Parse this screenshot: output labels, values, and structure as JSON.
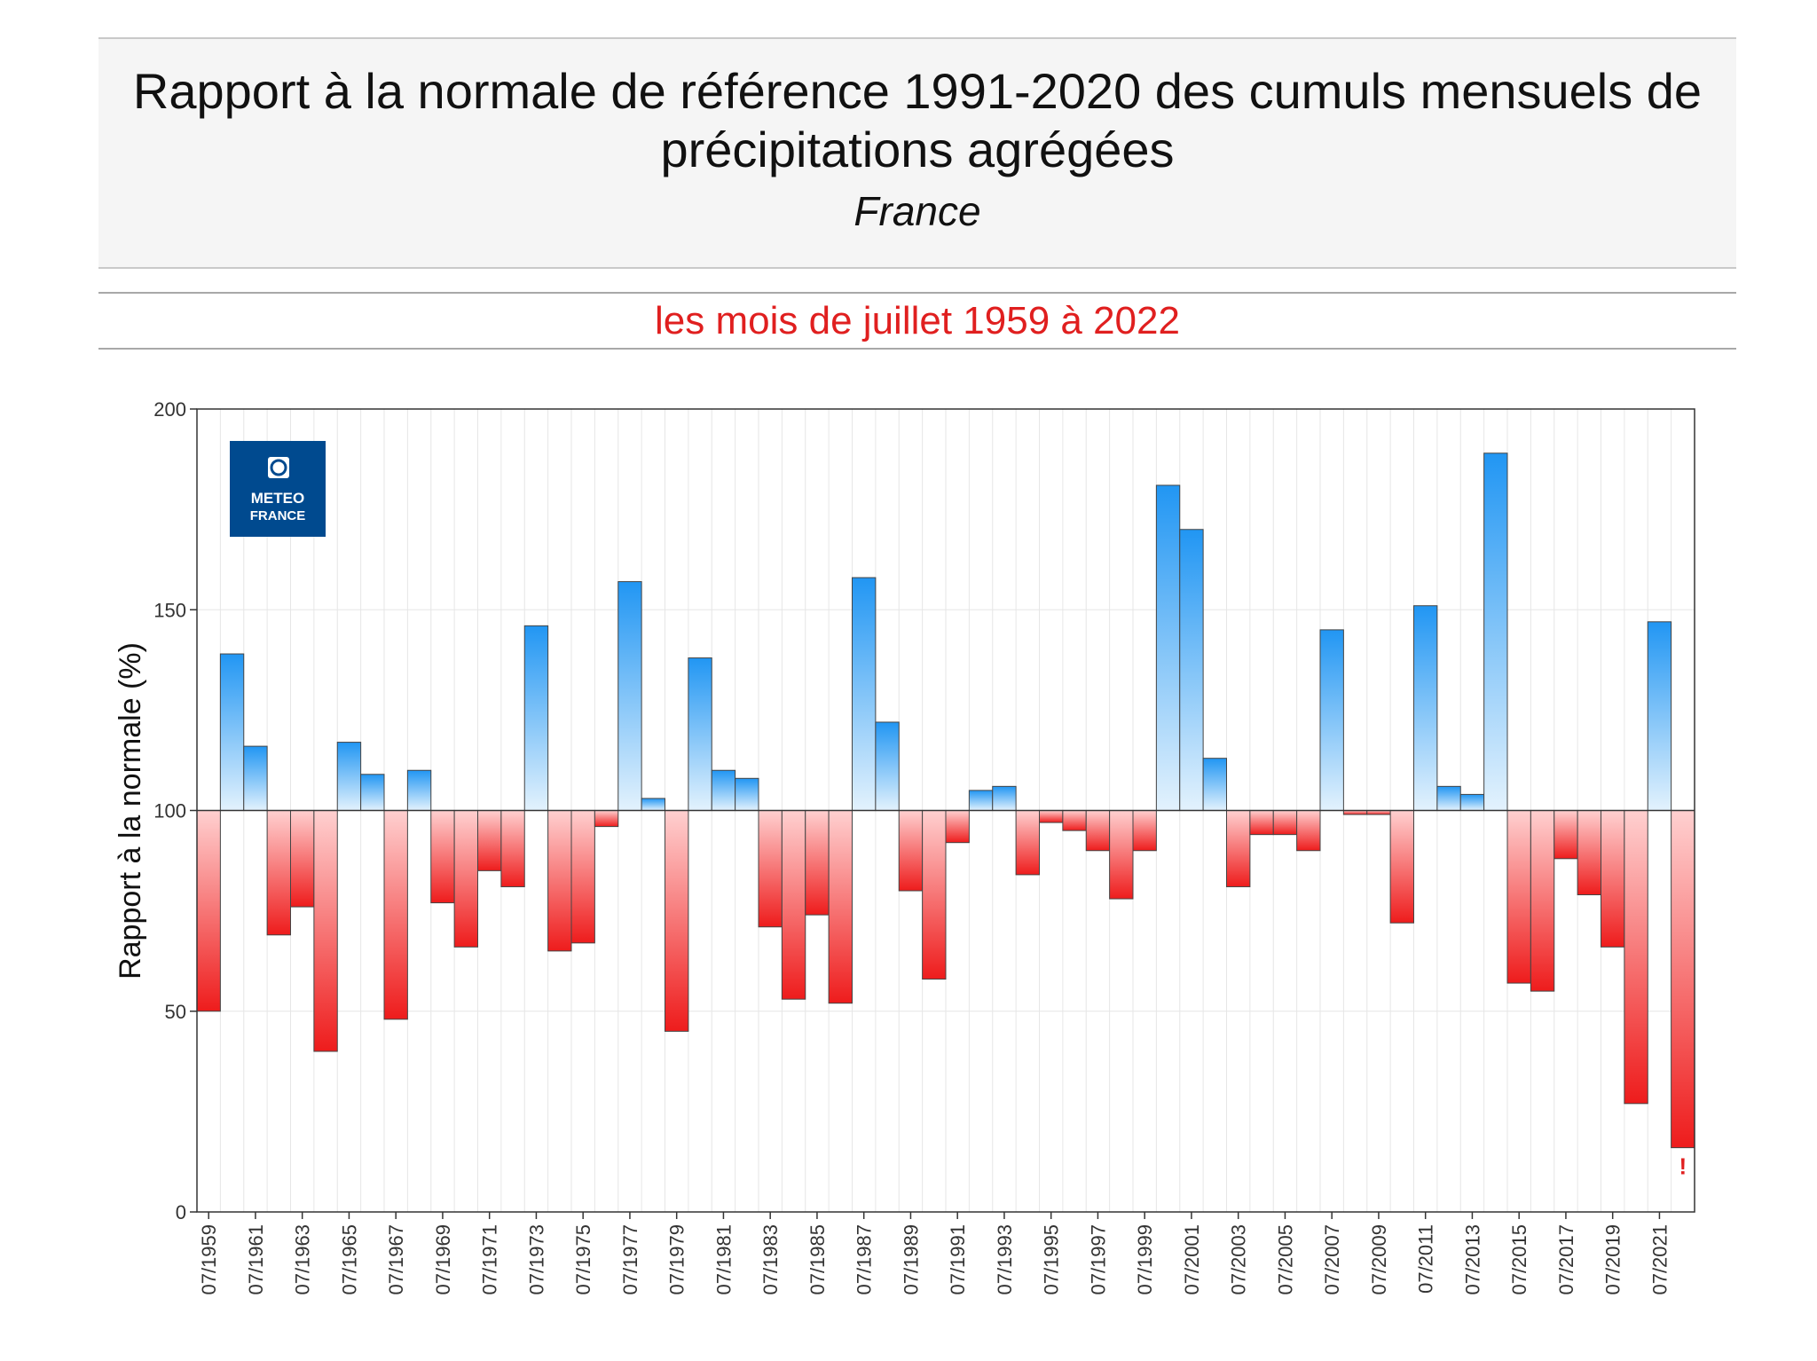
{
  "header": {
    "title": "Rapport à la normale de référence 1991-2020 des cumuls mensuels de précipitations agrégées",
    "region": "France",
    "subtitle": "les mois de juillet 1959 à 2022"
  },
  "logo": {
    "line1": "METEO",
    "line2": "FRANCE",
    "color": "#004a8f"
  },
  "colors": {
    "positive_top": "#2196f3",
    "positive_bottom": "#e3f2fd",
    "negative_top": "#ffd0d0",
    "negative_bottom": "#ee1c1c",
    "warning": "#e01f1f"
  },
  "chart_data": {
    "type": "bar",
    "ylabel": "Rapport à la normale (%)",
    "ylim": [
      0,
      200
    ],
    "yticks": [
      0,
      50,
      100,
      150,
      200
    ],
    "baseline": 100,
    "grid": true,
    "years": [
      1959,
      1960,
      1961,
      1962,
      1963,
      1964,
      1965,
      1966,
      1967,
      1968,
      1969,
      1970,
      1971,
      1972,
      1973,
      1974,
      1975,
      1976,
      1977,
      1978,
      1979,
      1980,
      1981,
      1982,
      1983,
      1984,
      1985,
      1986,
      1987,
      1988,
      1989,
      1990,
      1991,
      1992,
      1993,
      1994,
      1995,
      1996,
      1997,
      1998,
      1999,
      2000,
      2001,
      2002,
      2003,
      2004,
      2005,
      2006,
      2007,
      2008,
      2009,
      2010,
      2011,
      2012,
      2013,
      2014,
      2015,
      2016,
      2017,
      2018,
      2019,
      2020,
      2021,
      2022
    ],
    "values": [
      50,
      139,
      116,
      69,
      76,
      40,
      117,
      109,
      48,
      110,
      77,
      66,
      85,
      81,
      146,
      65,
      67,
      96,
      157,
      103,
      45,
      138,
      110,
      108,
      71,
      53,
      74,
      52,
      158,
      122,
      80,
      58,
      92,
      105,
      106,
      84,
      97,
      95,
      90,
      78,
      90,
      181,
      170,
      113,
      81,
      94,
      94,
      90,
      145,
      99,
      99,
      72,
      151,
      106,
      104,
      189,
      57,
      55,
      88,
      79,
      66,
      27,
      147,
      16
    ],
    "xtick_labels": [
      "07/1959",
      "07/1961",
      "07/1963",
      "07/1965",
      "07/1967",
      "07/1969",
      "07/1971",
      "07/1973",
      "07/1975",
      "07/1977",
      "07/1979",
      "07/1981",
      "07/1983",
      "07/1985",
      "07/1987",
      "07/1989",
      "07/1991",
      "07/1993",
      "07/1995",
      "07/1997",
      "07/1999",
      "07/2001",
      "07/2003",
      "07/2005",
      "07/2007",
      "07/2009",
      "07/2011",
      "07/2013",
      "07/2015",
      "07/2017",
      "07/2019",
      "07/2021"
    ],
    "annotation": {
      "text": "!",
      "year": 2022
    }
  }
}
